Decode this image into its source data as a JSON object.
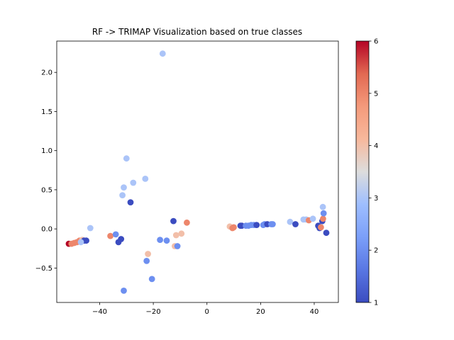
{
  "chart_data": {
    "type": "scatter",
    "title": "RF -> TRIMAP Visualization based on true classes",
    "xlabel": "",
    "ylabel": "",
    "xlim": [
      -56,
      49
    ],
    "ylim": [
      -0.94,
      2.4
    ],
    "x_ticks": [
      -40,
      -20,
      0,
      20,
      40
    ],
    "y_ticks": [
      -0.5,
      0.0,
      0.5,
      1.0,
      1.5,
      2.0
    ],
    "x_tick_labels": [
      "−40",
      "−20",
      "0",
      "20",
      "40"
    ],
    "y_tick_labels": [
      "−0.5",
      "0.0",
      "0.5",
      "1.0",
      "1.5",
      "2.0"
    ],
    "colorbar": {
      "colormap": "coolwarm",
      "range": [
        1,
        6
      ],
      "ticks": [
        1,
        2,
        3,
        4,
        5,
        6
      ],
      "tick_labels": [
        "1",
        "2",
        "3",
        "4",
        "5",
        "6"
      ]
    },
    "points": [
      {
        "x": -16.5,
        "y": 2.24,
        "c": 3
      },
      {
        "x": -30.0,
        "y": 0.9,
        "c": 3
      },
      {
        "x": -23.0,
        "y": 0.64,
        "c": 3
      },
      {
        "x": -27.5,
        "y": 0.59,
        "c": 3
      },
      {
        "x": -31.0,
        "y": 0.53,
        "c": 3
      },
      {
        "x": -31.5,
        "y": 0.43,
        "c": 3
      },
      {
        "x": -28.5,
        "y": 0.34,
        "c": 1
      },
      {
        "x": -12.5,
        "y": 0.1,
        "c": 1
      },
      {
        "x": -7.5,
        "y": 0.08,
        "c": 5
      },
      {
        "x": -43.5,
        "y": 0.01,
        "c": 3
      },
      {
        "x": -9.5,
        "y": -0.06,
        "c": 4
      },
      {
        "x": -11.5,
        "y": -0.08,
        "c": 4
      },
      {
        "x": -36.0,
        "y": -0.09,
        "c": 5
      },
      {
        "x": -34.0,
        "y": -0.07,
        "c": 2
      },
      {
        "x": -32.0,
        "y": -0.13,
        "c": 1
      },
      {
        "x": -33.0,
        "y": -0.17,
        "c": 1
      },
      {
        "x": -17.5,
        "y": -0.14,
        "c": 2
      },
      {
        "x": -15.0,
        "y": -0.15,
        "c": 2
      },
      {
        "x": -12.0,
        "y": -0.22,
        "c": 4
      },
      {
        "x": -11.0,
        "y": -0.22,
        "c": 2
      },
      {
        "x": -22.0,
        "y": -0.32,
        "c": 4
      },
      {
        "x": -22.5,
        "y": -0.41,
        "c": 2
      },
      {
        "x": -20.5,
        "y": -0.64,
        "c": 2
      },
      {
        "x": -31.0,
        "y": -0.79,
        "c": 2
      },
      {
        "x": -51.5,
        "y": -0.19,
        "c": 6
      },
      {
        "x": -50.5,
        "y": -0.19,
        "c": 5
      },
      {
        "x": -49.5,
        "y": -0.18,
        "c": 5
      },
      {
        "x": -48.5,
        "y": -0.17,
        "c": 5
      },
      {
        "x": -47.5,
        "y": -0.15,
        "c": 5
      },
      {
        "x": -46.5,
        "y": -0.14,
        "c": 4
      },
      {
        "x": -45.8,
        "y": -0.15,
        "c": 1
      },
      {
        "x": -45.0,
        "y": -0.15,
        "c": 1
      },
      {
        "x": -47.0,
        "y": -0.17,
        "c": 3
      },
      {
        "x": 8.5,
        "y": 0.03,
        "c": 4
      },
      {
        "x": 9.5,
        "y": 0.01,
        "c": 5
      },
      {
        "x": 10.0,
        "y": 0.02,
        "c": 5
      },
      {
        "x": 12.5,
        "y": 0.04,
        "c": 1
      },
      {
        "x": 13.0,
        "y": 0.04,
        "c": 1
      },
      {
        "x": 14.5,
        "y": 0.04,
        "c": 2
      },
      {
        "x": 15.5,
        "y": 0.04,
        "c": 2
      },
      {
        "x": 16.5,
        "y": 0.05,
        "c": 2
      },
      {
        "x": 17.5,
        "y": 0.05,
        "c": 2
      },
      {
        "x": 18.5,
        "y": 0.05,
        "c": 1
      },
      {
        "x": 21.0,
        "y": 0.05,
        "c": 2
      },
      {
        "x": 21.5,
        "y": 0.06,
        "c": 2
      },
      {
        "x": 22.5,
        "y": 0.06,
        "c": 1
      },
      {
        "x": 24.0,
        "y": 0.06,
        "c": 2
      },
      {
        "x": 24.5,
        "y": 0.06,
        "c": 2
      },
      {
        "x": 31.0,
        "y": 0.09,
        "c": 3
      },
      {
        "x": 33.0,
        "y": 0.06,
        "c": 1
      },
      {
        "x": 36.0,
        "y": 0.12,
        "c": 3
      },
      {
        "x": 37.0,
        "y": 0.12,
        "c": 3
      },
      {
        "x": 38.0,
        "y": 0.11,
        "c": 5
      },
      {
        "x": 39.5,
        "y": 0.13,
        "c": 3
      },
      {
        "x": 41.5,
        "y": 0.04,
        "c": 1
      },
      {
        "x": 42.0,
        "y": 0.01,
        "c": 1
      },
      {
        "x": 42.5,
        "y": 0.02,
        "c": 5
      },
      {
        "x": 43.0,
        "y": 0.1,
        "c": 1
      },
      {
        "x": 43.3,
        "y": 0.13,
        "c": 5
      },
      {
        "x": 43.5,
        "y": 0.2,
        "c": 2
      },
      {
        "x": 43.2,
        "y": 0.28,
        "c": 3
      },
      {
        "x": 44.5,
        "y": -0.05,
        "c": 1
      }
    ]
  }
}
